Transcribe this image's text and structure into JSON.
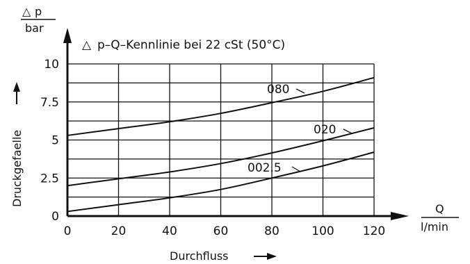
{
  "chart_data": {
    "type": "line",
    "title": "p–Q–Kennlinie bei 22 cSt (50°C)",
    "title_symbol": "△",
    "xlabel": "Durchfluss",
    "ylabel": "Druckgefaelle",
    "y_unit": {
      "symbol": "△",
      "var": "p",
      "unit": "bar"
    },
    "x_unit": {
      "var": "Q",
      "unit": "l/min"
    },
    "xlim": [
      0,
      120
    ],
    "ylim": [
      0,
      10
    ],
    "xticks": [
      0,
      20,
      40,
      60,
      80,
      100,
      120
    ],
    "xtick_labels": [
      "0",
      "20",
      "40",
      "60",
      "80",
      "100",
      "120"
    ],
    "yticks": [
      0,
      2.5,
      5,
      7.5,
      10
    ],
    "ytick_labels": [
      "0",
      "2.5",
      "5",
      "7.5",
      "10"
    ],
    "grid": true,
    "series": [
      {
        "name": "080",
        "x": [
          0,
          20,
          40,
          60,
          80,
          100,
          120
        ],
        "y": [
          5.3,
          5.75,
          6.2,
          6.75,
          7.45,
          8.2,
          9.1
        ]
      },
      {
        "name": "020",
        "x": [
          0,
          20,
          40,
          60,
          80,
          100,
          120
        ],
        "y": [
          2.0,
          2.45,
          2.9,
          3.45,
          4.15,
          4.95,
          5.8
        ]
      },
      {
        "name": "002.5",
        "x": [
          0,
          20,
          40,
          60,
          80,
          100,
          120
        ],
        "y": [
          0.3,
          0.75,
          1.2,
          1.75,
          2.5,
          3.3,
          4.2
        ]
      }
    ]
  }
}
